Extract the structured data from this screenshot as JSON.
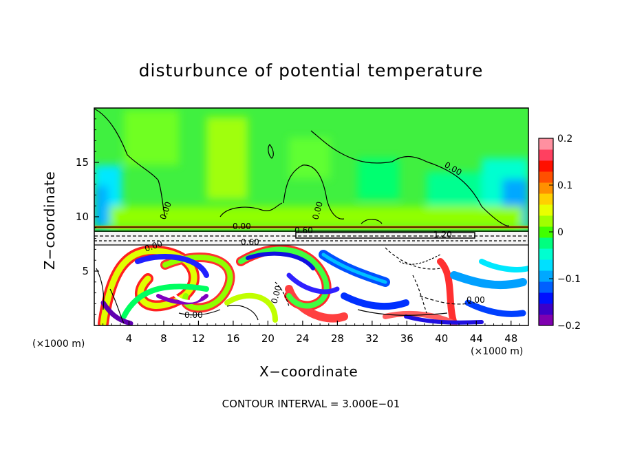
{
  "chart_data": {
    "type": "heatmap",
    "title": "disturbunce of potential temperature",
    "xlabel": "X−coordinate",
    "ylabel": "Z−coordinate",
    "x_unit": "(×1000 m)",
    "x_ticks": [
      4,
      8,
      12,
      16,
      20,
      24,
      28,
      32,
      36,
      40,
      44,
      48
    ],
    "y_ticks": [
      5,
      10,
      15
    ],
    "xlim": [
      0,
      50
    ],
    "ylim": [
      0,
      20
    ],
    "colorbar": {
      "ticks": [
        "0.2",
        "0.1",
        "0",
        "−0.1",
        "−0.2"
      ],
      "range": [
        -0.2,
        0.2
      ],
      "colors": [
        "#7f00b0",
        "#3c00c8",
        "#0010ff",
        "#0060ff",
        "#00a8ff",
        "#00e0ff",
        "#00ffd0",
        "#00ff80",
        "#40ff00",
        "#a0ff00",
        "#e8ff00",
        "#ffd000",
        "#ff9000",
        "#ff5000",
        "#ff1000",
        "#ff4060",
        "#ff90a0"
      ]
    },
    "contour_labels": [
      "0.00",
      "0.00",
      "0.00",
      "0.60",
      "0.60",
      "1.20",
      "0.00",
      "0.00",
      "0.00",
      "0.00",
      "0.00"
    ],
    "footer": "CONTOUR INTERVAL = 3.000E−01"
  }
}
